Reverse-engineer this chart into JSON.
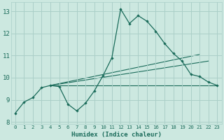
{
  "xlabel": "Humidex (Indice chaleur)",
  "ylabel": "",
  "bg_color": "#cce8e0",
  "grid_color": "#aacfc8",
  "line_color": "#1a6b5a",
  "xlim": [
    -0.5,
    23.5
  ],
  "ylim": [
    7.9,
    13.4
  ],
  "xticks": [
    0,
    1,
    2,
    3,
    4,
    5,
    6,
    7,
    8,
    9,
    10,
    11,
    12,
    13,
    14,
    15,
    16,
    17,
    18,
    19,
    20,
    21,
    22,
    23
  ],
  "yticks": [
    8,
    9,
    10,
    11,
    12,
    13
  ],
  "main_line_x": [
    0,
    1,
    2,
    3,
    4,
    5,
    6,
    7,
    8,
    9,
    10,
    11,
    12,
    13,
    14,
    15,
    16,
    17,
    18,
    19,
    20,
    21,
    22,
    23
  ],
  "main_line_y": [
    8.4,
    8.9,
    9.1,
    9.55,
    9.65,
    9.6,
    8.8,
    8.5,
    8.85,
    9.4,
    10.1,
    10.9,
    13.1,
    12.45,
    12.8,
    12.55,
    12.1,
    11.55,
    11.1,
    10.75,
    10.15,
    10.05,
    9.8,
    9.65
  ],
  "trend_lines": [
    {
      "x": [
        4,
        23
      ],
      "y": [
        9.65,
        9.65
      ]
    },
    {
      "x": [
        4,
        22
      ],
      "y": [
        9.65,
        10.75
      ]
    },
    {
      "x": [
        4,
        21
      ],
      "y": [
        9.65,
        11.05
      ]
    }
  ]
}
